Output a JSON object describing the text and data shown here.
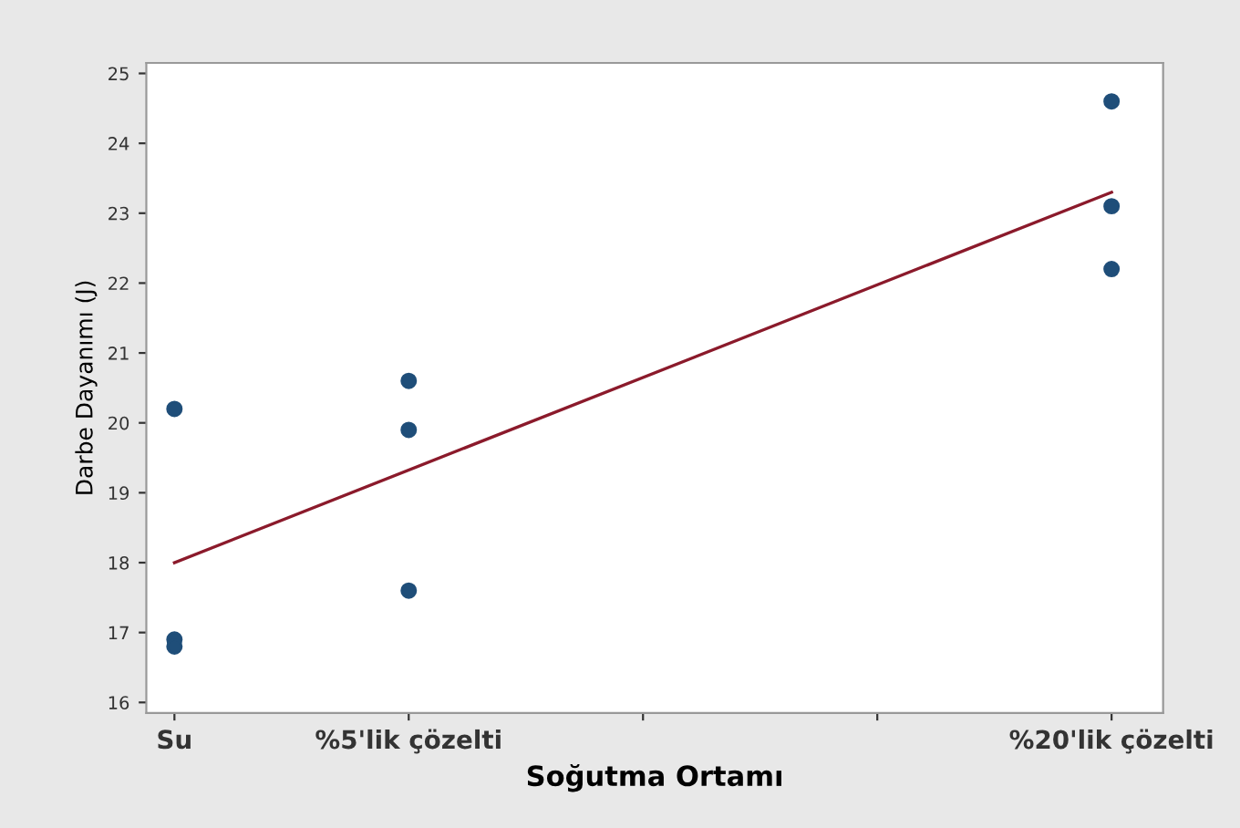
{
  "chart_data": {
    "type": "scatter",
    "xlabel": "Soğutma Ortamı",
    "ylabel": "Darbe Dayanımı (J)",
    "grid": false,
    "legend": false,
    "series": [
      {
        "marker": "circle",
        "color": "#1f4e79",
        "x": [
          0,
          0,
          0,
          5,
          5,
          5,
          20,
          20,
          20
        ],
        "values": [
          20.2,
          16.9,
          16.8,
          20.6,
          19.9,
          17.6,
          24.6,
          23.1,
          22.2
        ]
      },
      {
        "type": "line",
        "marker": "none",
        "color": "#8b1a2b",
        "x": [
          0,
          20
        ],
        "values": [
          18.0,
          23.3
        ]
      }
    ],
    "xlim": [
      -0.6,
      21.1
    ],
    "xticks": [
      {
        "value": 0,
        "label": "Su"
      },
      {
        "value": 5,
        "label": "%5'lik çözelti"
      },
      {
        "value": 10,
        "label": null
      },
      {
        "value": 15,
        "label": null
      },
      {
        "value": 20,
        "label": "%20'lik çözelti"
      }
    ],
    "ylim": [
      15.85,
      25.15
    ],
    "yticks": [
      16,
      17,
      18,
      19,
      20,
      21,
      22,
      23,
      24,
      25
    ]
  }
}
